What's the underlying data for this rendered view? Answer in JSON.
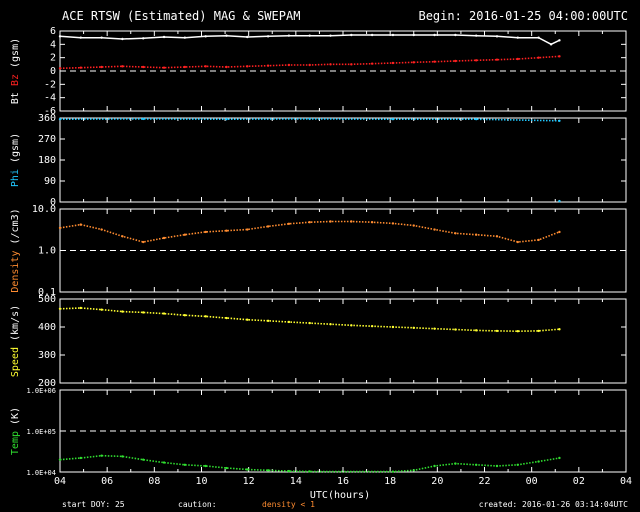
{
  "header": {
    "title": "ACE RTSW (Estimated) MAG & SWEPAM",
    "begin": "Begin: 2016-01-25 04:00:00UTC"
  },
  "footer": {
    "start_doy": "start DOY: 25",
    "caution": "caution:",
    "density_note": "density < 1",
    "created": "created: 2016-01-26 03:14:04UTC"
  },
  "colors": {
    "background": "#000000",
    "frame": "#ffffff",
    "bt": "#ffffff",
    "bz": "#ff2020",
    "phi": "#20c8ff",
    "density": "#ff8c30",
    "speed": "#ffff30",
    "temp": "#30e030"
  },
  "chart_data": {
    "type": "scatter",
    "xlabel": "UTC(hours)",
    "x_ticks": [
      "04",
      "06",
      "08",
      "10",
      "12",
      "14",
      "16",
      "18",
      "20",
      "22",
      "00",
      "02",
      "04"
    ],
    "panels": [
      {
        "id": "mag",
        "ylabel_parts": [
          {
            "text": "Bt",
            "color": "#ffffff"
          },
          {
            "text": "Bz",
            "color": "#ff2020"
          },
          {
            "text": "(gsm)",
            "color": "#ffffff"
          }
        ],
        "yticks": [
          "6",
          "4",
          "2",
          "0",
          "-2",
          "-4",
          "-6"
        ],
        "series": [
          {
            "name": "Bt",
            "values": [
              [
                0,
                5.2
              ],
              [
                1,
                5.0
              ],
              [
                2,
                5.0
              ],
              [
                3,
                4.8
              ],
              [
                4,
                4.9
              ],
              [
                5,
                5.1
              ],
              [
                6,
                5.0
              ],
              [
                7,
                5.2
              ],
              [
                8,
                5.3
              ],
              [
                9,
                5.1
              ],
              [
                10,
                5.2
              ],
              [
                11,
                5.3
              ],
              [
                12,
                5.3
              ],
              [
                13,
                5.3
              ],
              [
                14,
                5.4
              ],
              [
                15,
                5.4
              ],
              [
                16,
                5.4
              ],
              [
                17,
                5.4
              ],
              [
                18,
                5.4
              ],
              [
                19,
                5.4
              ],
              [
                20,
                5.3
              ],
              [
                21,
                5.2
              ],
              [
                22,
                5.0
              ],
              [
                23,
                5.0
              ],
              [
                23.6,
                4.0
              ],
              [
                24,
                4.6
              ],
              [
                25,
                5.0
              ],
              [
                26,
                4.7
              ],
              [
                27,
                4.2
              ]
            ]
          },
          {
            "name": "Bz",
            "values": [
              [
                0,
                0.4
              ],
              [
                1,
                0.5
              ],
              [
                2,
                0.6
              ],
              [
                3,
                0.7
              ],
              [
                4,
                0.6
              ],
              [
                5,
                0.5
              ],
              [
                6,
                0.6
              ],
              [
                7,
                0.7
              ],
              [
                8,
                0.6
              ],
              [
                9,
                0.7
              ],
              [
                10,
                0.8
              ],
              [
                11,
                0.9
              ],
              [
                12,
                0.9
              ],
              [
                13,
                1.0
              ],
              [
                14,
                1.0
              ],
              [
                15,
                1.1
              ],
              [
                16,
                1.2
              ],
              [
                17,
                1.3
              ],
              [
                18,
                1.4
              ],
              [
                19,
                1.5
              ],
              [
                20,
                1.6
              ],
              [
                21,
                1.7
              ],
              [
                22,
                1.8
              ],
              [
                23,
                2.0
              ],
              [
                24,
                2.2
              ],
              [
                25,
                1.9
              ],
              [
                26,
                1.5
              ],
              [
                27,
                0.8
              ]
            ]
          }
        ]
      },
      {
        "id": "phi",
        "ylabel_parts": [
          {
            "text": "Phi",
            "color": "#20c8ff"
          },
          {
            "text": "(gsm)",
            "color": "#ffffff"
          }
        ],
        "yticks": [
          "360",
          "270",
          "180",
          "90",
          "0"
        ],
        "series": [
          {
            "name": "Phi",
            "values": [
              [
                0,
                355
              ],
              [
                4,
                356
              ],
              [
                8,
                355
              ],
              [
                12,
                356
              ],
              [
                16,
                355
              ],
              [
                20,
                355
              ],
              [
                24,
                348
              ],
              [
                25,
                352
              ],
              [
                26,
                354
              ],
              [
                27,
                356
              ]
            ]
          },
          {
            "name": "Phi-low",
            "values": [
              [
                24,
                4
              ],
              [
                25,
                6
              ],
              [
                26,
                8
              ],
              [
                27,
                5
              ]
            ]
          }
        ]
      },
      {
        "id": "density",
        "ylabel_parts": [
          {
            "text": "Density",
            "color": "#ff8c30"
          },
          {
            "text": "(/cm3)",
            "color": "#ffffff"
          }
        ],
        "yticks": [
          "10.0",
          "1.0",
          "0.1"
        ],
        "series": [
          {
            "name": "Density",
            "values": [
              [
                0,
                3.5
              ],
              [
                1,
                4.2
              ],
              [
                2,
                3.2
              ],
              [
                3,
                2.2
              ],
              [
                4,
                1.6
              ],
              [
                5,
                2.0
              ],
              [
                6,
                2.4
              ],
              [
                7,
                2.8
              ],
              [
                8,
                3.0
              ],
              [
                9,
                3.2
              ],
              [
                10,
                3.8
              ],
              [
                11,
                4.4
              ],
              [
                12,
                4.8
              ],
              [
                13,
                5.0
              ],
              [
                14,
                5.0
              ],
              [
                15,
                4.8
              ],
              [
                16,
                4.5
              ],
              [
                17,
                4.0
              ],
              [
                18,
                3.2
              ],
              [
                19,
                2.6
              ],
              [
                20,
                2.4
              ],
              [
                21,
                2.2
              ],
              [
                22,
                1.6
              ],
              [
                23,
                1.8
              ],
              [
                24,
                2.8
              ],
              [
                25,
                5.0
              ],
              [
                26,
                6.5
              ],
              [
                27,
                7.5
              ]
            ]
          }
        ]
      },
      {
        "id": "speed",
        "ylabel_parts": [
          {
            "text": "Speed",
            "color": "#ffff30"
          },
          {
            "text": "(km/s)",
            "color": "#ffffff"
          }
        ],
        "yticks": [
          "500",
          "400",
          "300",
          "200"
        ],
        "series": [
          {
            "name": "Speed",
            "values": [
              [
                0,
                465
              ],
              [
                1,
                468
              ],
              [
                2,
                462
              ],
              [
                3,
                455
              ],
              [
                4,
                452
              ],
              [
                5,
                448
              ],
              [
                6,
                442
              ],
              [
                7,
                438
              ],
              [
                8,
                432
              ],
              [
                9,
                426
              ],
              [
                10,
                422
              ],
              [
                11,
                418
              ],
              [
                12,
                414
              ],
              [
                13,
                410
              ],
              [
                14,
                406
              ],
              [
                15,
                403
              ],
              [
                16,
                400
              ],
              [
                17,
                397
              ],
              [
                18,
                394
              ],
              [
                19,
                391
              ],
              [
                20,
                388
              ],
              [
                21,
                386
              ],
              [
                22,
                385
              ],
              [
                23,
                386
              ],
              [
                24,
                392
              ],
              [
                25,
                395
              ],
              [
                26,
                392
              ],
              [
                27,
                380
              ]
            ]
          }
        ]
      },
      {
        "id": "temp",
        "ylabel_parts": [
          {
            "text": "Temp",
            "color": "#30e030"
          },
          {
            "text": "(K)",
            "color": "#ffffff"
          }
        ],
        "yticks": [
          "1.0E+06",
          "1.0E+05",
          "1.0E+04"
        ],
        "series": [
          {
            "name": "Temp",
            "values": [
              [
                0,
                20000
              ],
              [
                1,
                22000
              ],
              [
                2,
                25000
              ],
              [
                3,
                24000
              ],
              [
                4,
                20000
              ],
              [
                5,
                17000
              ],
              [
                6,
                15000
              ],
              [
                7,
                14000
              ],
              [
                8,
                12500
              ],
              [
                9,
                11500
              ],
              [
                10,
                11000
              ],
              [
                11,
                10500
              ],
              [
                12,
                10300
              ],
              [
                16,
                10200
              ],
              [
                17,
                11000
              ],
              [
                18,
                14000
              ],
              [
                19,
                16000
              ],
              [
                20,
                15000
              ],
              [
                21,
                14000
              ],
              [
                22,
                15000
              ],
              [
                23,
                18000
              ],
              [
                24,
                22000
              ],
              [
                25,
                19000
              ],
              [
                26,
                22000
              ],
              [
                27,
                20000
              ]
            ]
          }
        ]
      }
    ]
  }
}
